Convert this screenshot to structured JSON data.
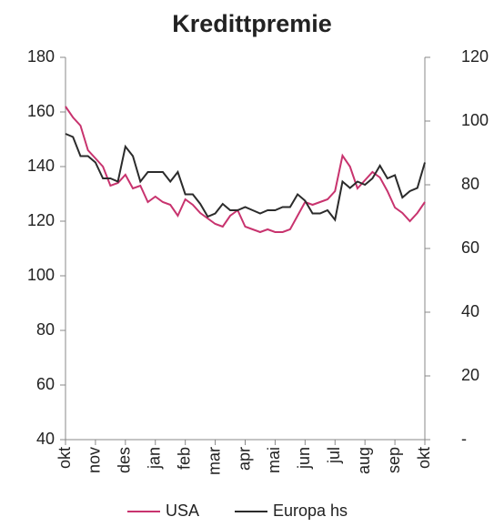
{
  "chart_data": {
    "type": "line",
    "title": "Kredittpremie",
    "x": [
      0,
      0.25,
      0.5,
      0.75,
      1,
      1.25,
      1.5,
      1.75,
      2,
      2.25,
      2.5,
      2.75,
      3,
      3.25,
      3.5,
      3.75,
      4,
      4.25,
      4.5,
      4.75,
      5,
      5.25,
      5.5,
      5.75,
      6,
      6.25,
      6.5,
      6.75,
      7,
      7.25,
      7.5,
      7.75,
      8,
      8.25,
      8.5,
      8.75,
      9,
      9.25,
      9.5,
      9.75,
      10,
      10.25,
      10.5,
      10.75,
      11,
      11.25,
      11.5,
      11.75,
      12
    ],
    "xlim": [
      0,
      12
    ],
    "xticks": [
      {
        "value": 0,
        "label": "okt"
      },
      {
        "value": 1,
        "label": "nov"
      },
      {
        "value": 2,
        "label": "des"
      },
      {
        "value": 3,
        "label": "jan"
      },
      {
        "value": 4,
        "label": "feb"
      },
      {
        "value": 5,
        "label": "mar"
      },
      {
        "value": 6,
        "label": "apr"
      },
      {
        "value": 7,
        "label": "mai"
      },
      {
        "value": 8,
        "label": "jun"
      },
      {
        "value": 9,
        "label": "jul"
      },
      {
        "value": 10,
        "label": "aug"
      },
      {
        "value": 11,
        "label": "sep"
      },
      {
        "value": 12,
        "label": "okt"
      }
    ],
    "ylim": [
      40,
      180
    ],
    "yticks": [
      40,
      60,
      80,
      100,
      120,
      140,
      160,
      180
    ],
    "y2lim": [
      0,
      120
    ],
    "y2ticks": [
      {
        "value": 0,
        "label": "-"
      },
      20,
      40,
      60,
      80,
      100,
      120
    ],
    "legend": "bottom",
    "series": [
      {
        "name": "USA",
        "color": "#c8336e",
        "values": [
          162,
          158,
          155,
          146,
          143,
          140,
          133,
          134,
          137,
          132,
          133,
          127,
          129,
          127,
          126,
          122,
          128,
          126,
          123,
          121,
          119,
          118,
          122,
          124,
          118,
          117,
          116,
          117,
          116,
          116,
          117,
          122,
          127,
          126,
          127,
          128,
          131,
          144,
          140,
          132,
          135,
          138,
          136,
          131,
          125,
          123,
          120,
          123,
          127
        ]
      },
      {
        "name": "Europa hs",
        "color": "#2b2b2b",
        "axis": "y2",
        "values": [
          96,
          95,
          89,
          89,
          87,
          82,
          82,
          81,
          92,
          89,
          81,
          84,
          84,
          84,
          81,
          84,
          77,
          77,
          74,
          70,
          71,
          74,
          72,
          72,
          73,
          72,
          71,
          72,
          72,
          73,
          73,
          77,
          75,
          71,
          71,
          72,
          69,
          81,
          79,
          81,
          80,
          82,
          86,
          82,
          83,
          76,
          78,
          79,
          87
        ]
      }
    ]
  }
}
